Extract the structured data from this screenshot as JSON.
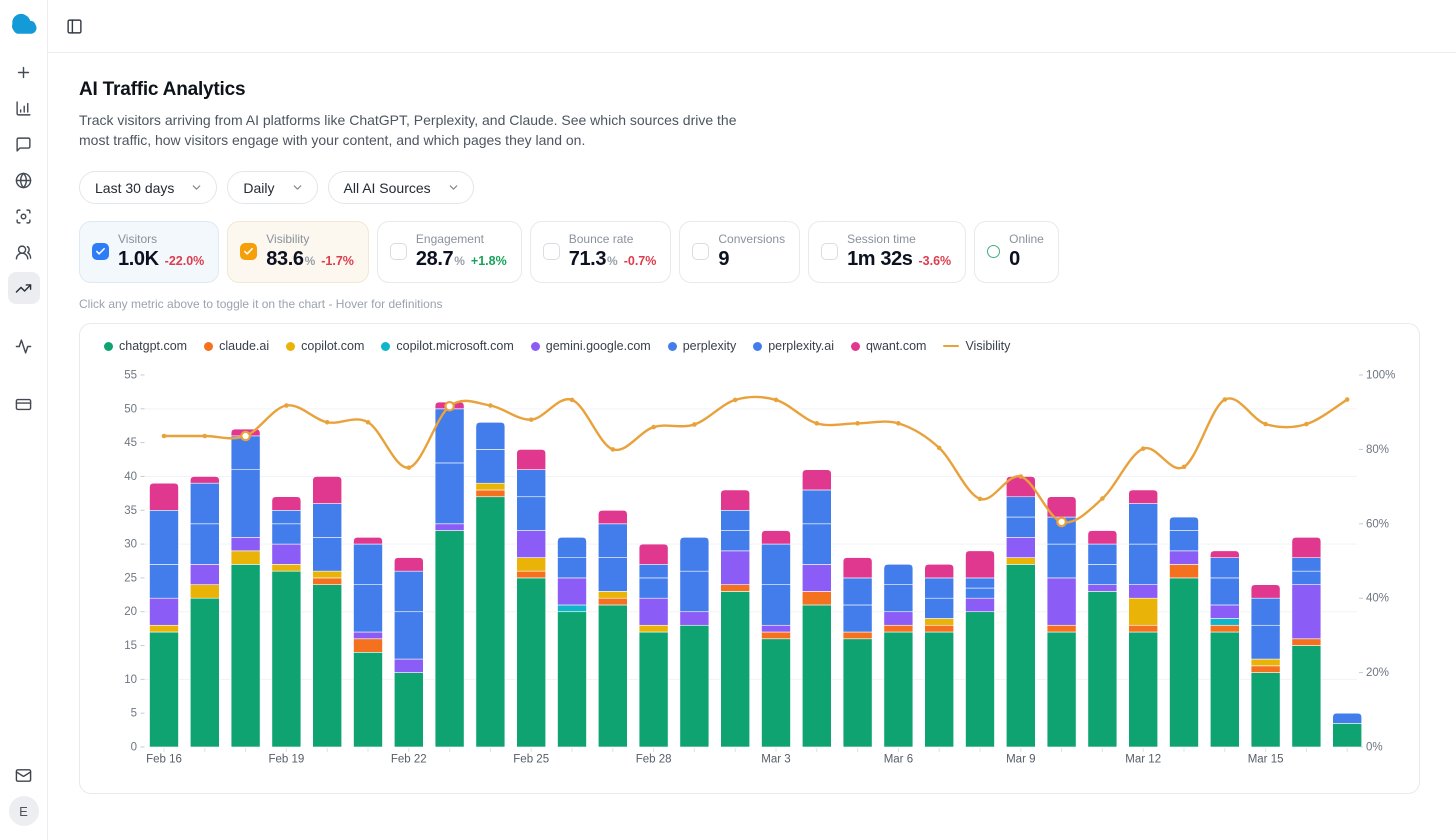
{
  "header": {
    "toggle_icon": "panel-left-icon"
  },
  "sidebar": {
    "logo_color": "#149bd7",
    "items": [
      {
        "id": "new",
        "icon": "plus"
      },
      {
        "id": "analytics",
        "icon": "bar-chart"
      },
      {
        "id": "messages",
        "icon": "message-square"
      },
      {
        "id": "web",
        "icon": "globe"
      },
      {
        "id": "scan",
        "icon": "scan-search"
      },
      {
        "id": "audience",
        "icon": "users"
      },
      {
        "id": "traffic-trends",
        "icon": "trending-up",
        "active": true
      },
      {
        "id": "activity",
        "icon": "activity",
        "spaced": true
      },
      {
        "id": "billing",
        "icon": "credit-card",
        "spaced": true
      }
    ],
    "bottom": [
      {
        "id": "inbox",
        "icon": "mail"
      }
    ],
    "avatar_initial": "E"
  },
  "page": {
    "title": "AI Traffic Analytics",
    "description": "Track visitors arriving from AI platforms like ChatGPT, Perplexity, and Claude. See which sources drive the most traffic, how visitors engage with your content, and which pages they land on.",
    "hint": "Click any metric above to toggle it on the chart - Hover for definitions"
  },
  "filters": [
    {
      "id": "date-range",
      "label": "Last 30 days"
    },
    {
      "id": "granularity",
      "label": "Daily"
    },
    {
      "id": "source",
      "label": "All AI Sources"
    }
  ],
  "metrics": [
    {
      "id": "visitors",
      "label": "Visitors",
      "value": "1.0K",
      "unit": "",
      "change": "-22.0%",
      "trend": "down",
      "checked": true,
      "check_color": "#2e7df6",
      "card_style": "blue"
    },
    {
      "id": "visibility",
      "label": "Visibility",
      "value": "83.6",
      "unit": "%",
      "change": "-1.7%",
      "trend": "down",
      "checked": true,
      "check_color": "#f59f0a",
      "card_style": "amber"
    },
    {
      "id": "engagement",
      "label": "Engagement",
      "value": "28.7",
      "unit": "%",
      "change": "+1.8%",
      "trend": "up",
      "checked": false
    },
    {
      "id": "bounce-rate",
      "label": "Bounce rate",
      "value": "71.3",
      "unit": "%",
      "change": "-0.7%",
      "trend": "down",
      "checked": false
    },
    {
      "id": "conversions",
      "label": "Conversions",
      "value": "9",
      "unit": "",
      "change": "",
      "checked": false
    },
    {
      "id": "session-time",
      "label": "Session time",
      "value": "1m 32s",
      "unit": "",
      "change": "-3.6%",
      "trend": "down",
      "checked": false
    },
    {
      "id": "online",
      "label": "Online",
      "value": "0",
      "unit": "",
      "change": "",
      "indicator": "ring",
      "ring_color": "#3fae7e"
    }
  ],
  "chart_data": {
    "type": "bar",
    "stacked": true,
    "title": "AI traffic by source with Visibility overlay",
    "categories": [
      "Feb 16",
      "Feb 17",
      "Feb 18",
      "Feb 19",
      "Feb 20",
      "Feb 21",
      "Feb 22",
      "Feb 23",
      "Feb 24",
      "Feb 25",
      "Feb 26",
      "Feb 27",
      "Feb 28",
      "Mar 1",
      "Mar 2",
      "Mar 3",
      "Mar 4",
      "Mar 5",
      "Mar 6",
      "Mar 7",
      "Mar 8",
      "Mar 9",
      "Mar 10",
      "Mar 11",
      "Mar 12",
      "Mar 13",
      "Mar 14",
      "Mar 15",
      "Mar 16",
      "Mar 17"
    ],
    "x_tick_labels": [
      "Feb 16",
      "Feb 19",
      "Feb 22",
      "Feb 25",
      "Feb 28",
      "Mar 3",
      "Mar 6",
      "Mar 9",
      "Mar 12",
      "Mar 15"
    ],
    "series": [
      {
        "name": "chatgpt.com",
        "color": "#0ea371",
        "values": [
          17,
          22,
          27,
          26,
          24,
          14,
          11,
          32,
          37,
          25,
          20,
          21,
          17,
          18,
          23,
          16,
          21,
          16,
          17,
          17,
          20,
          27,
          17,
          23,
          17,
          25,
          17,
          11,
          15,
          3.5
        ]
      },
      {
        "name": "claude.ai",
        "color": "#f4711f",
        "values": [
          0,
          0,
          0,
          0,
          1,
          2,
          0,
          0,
          1,
          1,
          0,
          1,
          0,
          0,
          1,
          1,
          2,
          1,
          1,
          1,
          0,
          0,
          1,
          0,
          1,
          2,
          1,
          1,
          1,
          0
        ]
      },
      {
        "name": "copilot.com",
        "color": "#eab308",
        "values": [
          1,
          2,
          2,
          1,
          1,
          0,
          0,
          0,
          1,
          2,
          0,
          1,
          1,
          0,
          0,
          0,
          0,
          0,
          0,
          1,
          0,
          1,
          0,
          0,
          4,
          0,
          0,
          1,
          0,
          0
        ]
      },
      {
        "name": "copilot.microsoft.com",
        "color": "#0fb5c9",
        "values": [
          0,
          0,
          0,
          0,
          0,
          0,
          0,
          0,
          0,
          0,
          1,
          0,
          0,
          0,
          0,
          0,
          0,
          0,
          0,
          0,
          0,
          0,
          0,
          0,
          0,
          0,
          1,
          0,
          0,
          0
        ]
      },
      {
        "name": "gemini.google.com",
        "color": "#8b5cf6",
        "values": [
          4,
          3,
          2,
          3,
          0,
          1,
          2,
          1,
          0,
          4,
          4,
          0,
          4,
          2,
          5,
          1,
          4,
          0,
          2,
          0,
          2,
          3,
          7,
          1,
          2,
          2,
          2,
          0,
          8,
          0
        ]
      },
      {
        "name": "perplexity",
        "color": "#437deb",
        "values": [
          5,
          6,
          10,
          3,
          5,
          7,
          7,
          9,
          5,
          5,
          3,
          5,
          3,
          6,
          3,
          6,
          6,
          4,
          4,
          3,
          1.5,
          3,
          5,
          3,
          6,
          3,
          4,
          5,
          2,
          1.5
        ]
      },
      {
        "name": "perplexity.ai",
        "color": "#437deb",
        "values": [
          8,
          6,
          5,
          2,
          5,
          6,
          6,
          8,
          4,
          4,
          3,
          5,
          2,
          5,
          3,
          6,
          5,
          4,
          3,
          3,
          1.5,
          3,
          4,
          3,
          6,
          2,
          3,
          4,
          2,
          0
        ]
      },
      {
        "name": "qwant.com",
        "color": "#e0388e",
        "values": [
          4,
          1,
          1,
          2,
          4,
          1,
          2,
          1,
          0,
          3,
          0,
          2,
          3,
          0,
          3,
          2,
          3,
          3,
          0,
          2,
          4,
          3,
          3,
          2,
          2,
          0,
          1,
          2,
          3,
          0
        ]
      }
    ],
    "line_series": {
      "name": "Visibility",
      "color": "#e9a23b",
      "axis": "right",
      "unit": "%",
      "values": [
        83.6,
        83.6,
        83.6,
        91.8,
        87.3,
        87.3,
        75.1,
        91.6,
        91.8,
        88,
        93.3,
        80,
        86,
        86.7,
        93.3,
        93.3,
        87,
        87,
        87,
        80.4,
        66.7,
        72.7,
        60.5,
        66.8,
        80.2,
        75.3,
        93.4,
        86.8,
        86.8,
        93.4
      ],
      "ring_marker_indices": [
        2,
        7,
        22
      ]
    },
    "left_axis": {
      "min": 0,
      "max": 55,
      "tick_step": 5,
      "gridline_step": 10
    },
    "right_axis": {
      "min": 0,
      "max": 100,
      "tick_step": 20,
      "unit": "%"
    },
    "grid": true,
    "legend_position": "top-left",
    "legend": [
      {
        "label": "chatgpt.com",
        "color": "#0ea371",
        "swatch": "dot"
      },
      {
        "label": "claude.ai",
        "color": "#f4711f",
        "swatch": "dot"
      },
      {
        "label": "copilot.com",
        "color": "#eab308",
        "swatch": "dot"
      },
      {
        "label": "copilot.microsoft.com",
        "color": "#0fb5c9",
        "swatch": "dot"
      },
      {
        "label": "gemini.google.com",
        "color": "#8b5cf6",
        "swatch": "dot"
      },
      {
        "label": "perplexity",
        "color": "#437deb",
        "swatch": "dot"
      },
      {
        "label": "perplexity.ai",
        "color": "#437deb",
        "swatch": "dot"
      },
      {
        "label": "qwant.com",
        "color": "#e0388e",
        "swatch": "dot"
      },
      {
        "label": "Visibility",
        "color": "#e9a23b",
        "swatch": "line"
      }
    ]
  }
}
